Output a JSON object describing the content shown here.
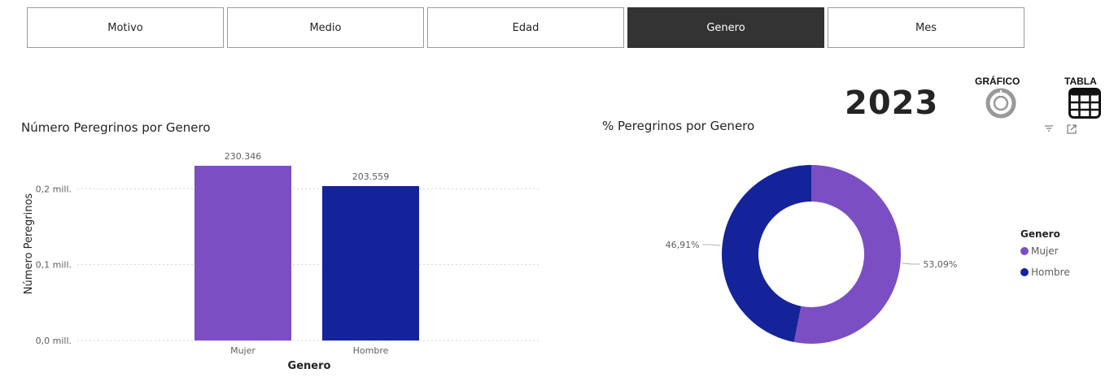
{
  "tabs": [
    {
      "label": "Motivo",
      "active": false
    },
    {
      "label": "Medio",
      "active": false
    },
    {
      "label": "Edad",
      "active": false
    },
    {
      "label": "Genero",
      "active": true
    },
    {
      "label": "Mes",
      "active": false
    }
  ],
  "year": "2023",
  "view_toggle": {
    "chart_label": "GRÁFICO",
    "table_label": "TABLA"
  },
  "colors": {
    "mujer": "#7b4fc3",
    "hombre": "#15239a",
    "active_tab": "#333333"
  },
  "chart_data": [
    {
      "type": "bar",
      "title": "Número Peregrinos por Genero",
      "xlabel": "Genero",
      "ylabel": "Número Peregrinos",
      "categories": [
        "Mujer",
        "Hombre"
      ],
      "values": [
        230346,
        203559
      ],
      "value_labels": [
        "230.346",
        "203.559"
      ],
      "yticks": [
        0,
        100000,
        200000
      ],
      "ytick_labels": [
        "0,0 mill.",
        "0,1 mill.",
        "0,2 mill."
      ],
      "ylim": [
        0,
        230346
      ],
      "grid": true
    },
    {
      "type": "pie",
      "variant": "donut",
      "title": "% Peregrinos por Genero",
      "categories": [
        "Mujer",
        "Hombre"
      ],
      "values": [
        53.09,
        46.91
      ],
      "value_labels": [
        "53,09%",
        "46,91%"
      ],
      "legend_title": "Genero",
      "legend_placement": "right"
    }
  ]
}
